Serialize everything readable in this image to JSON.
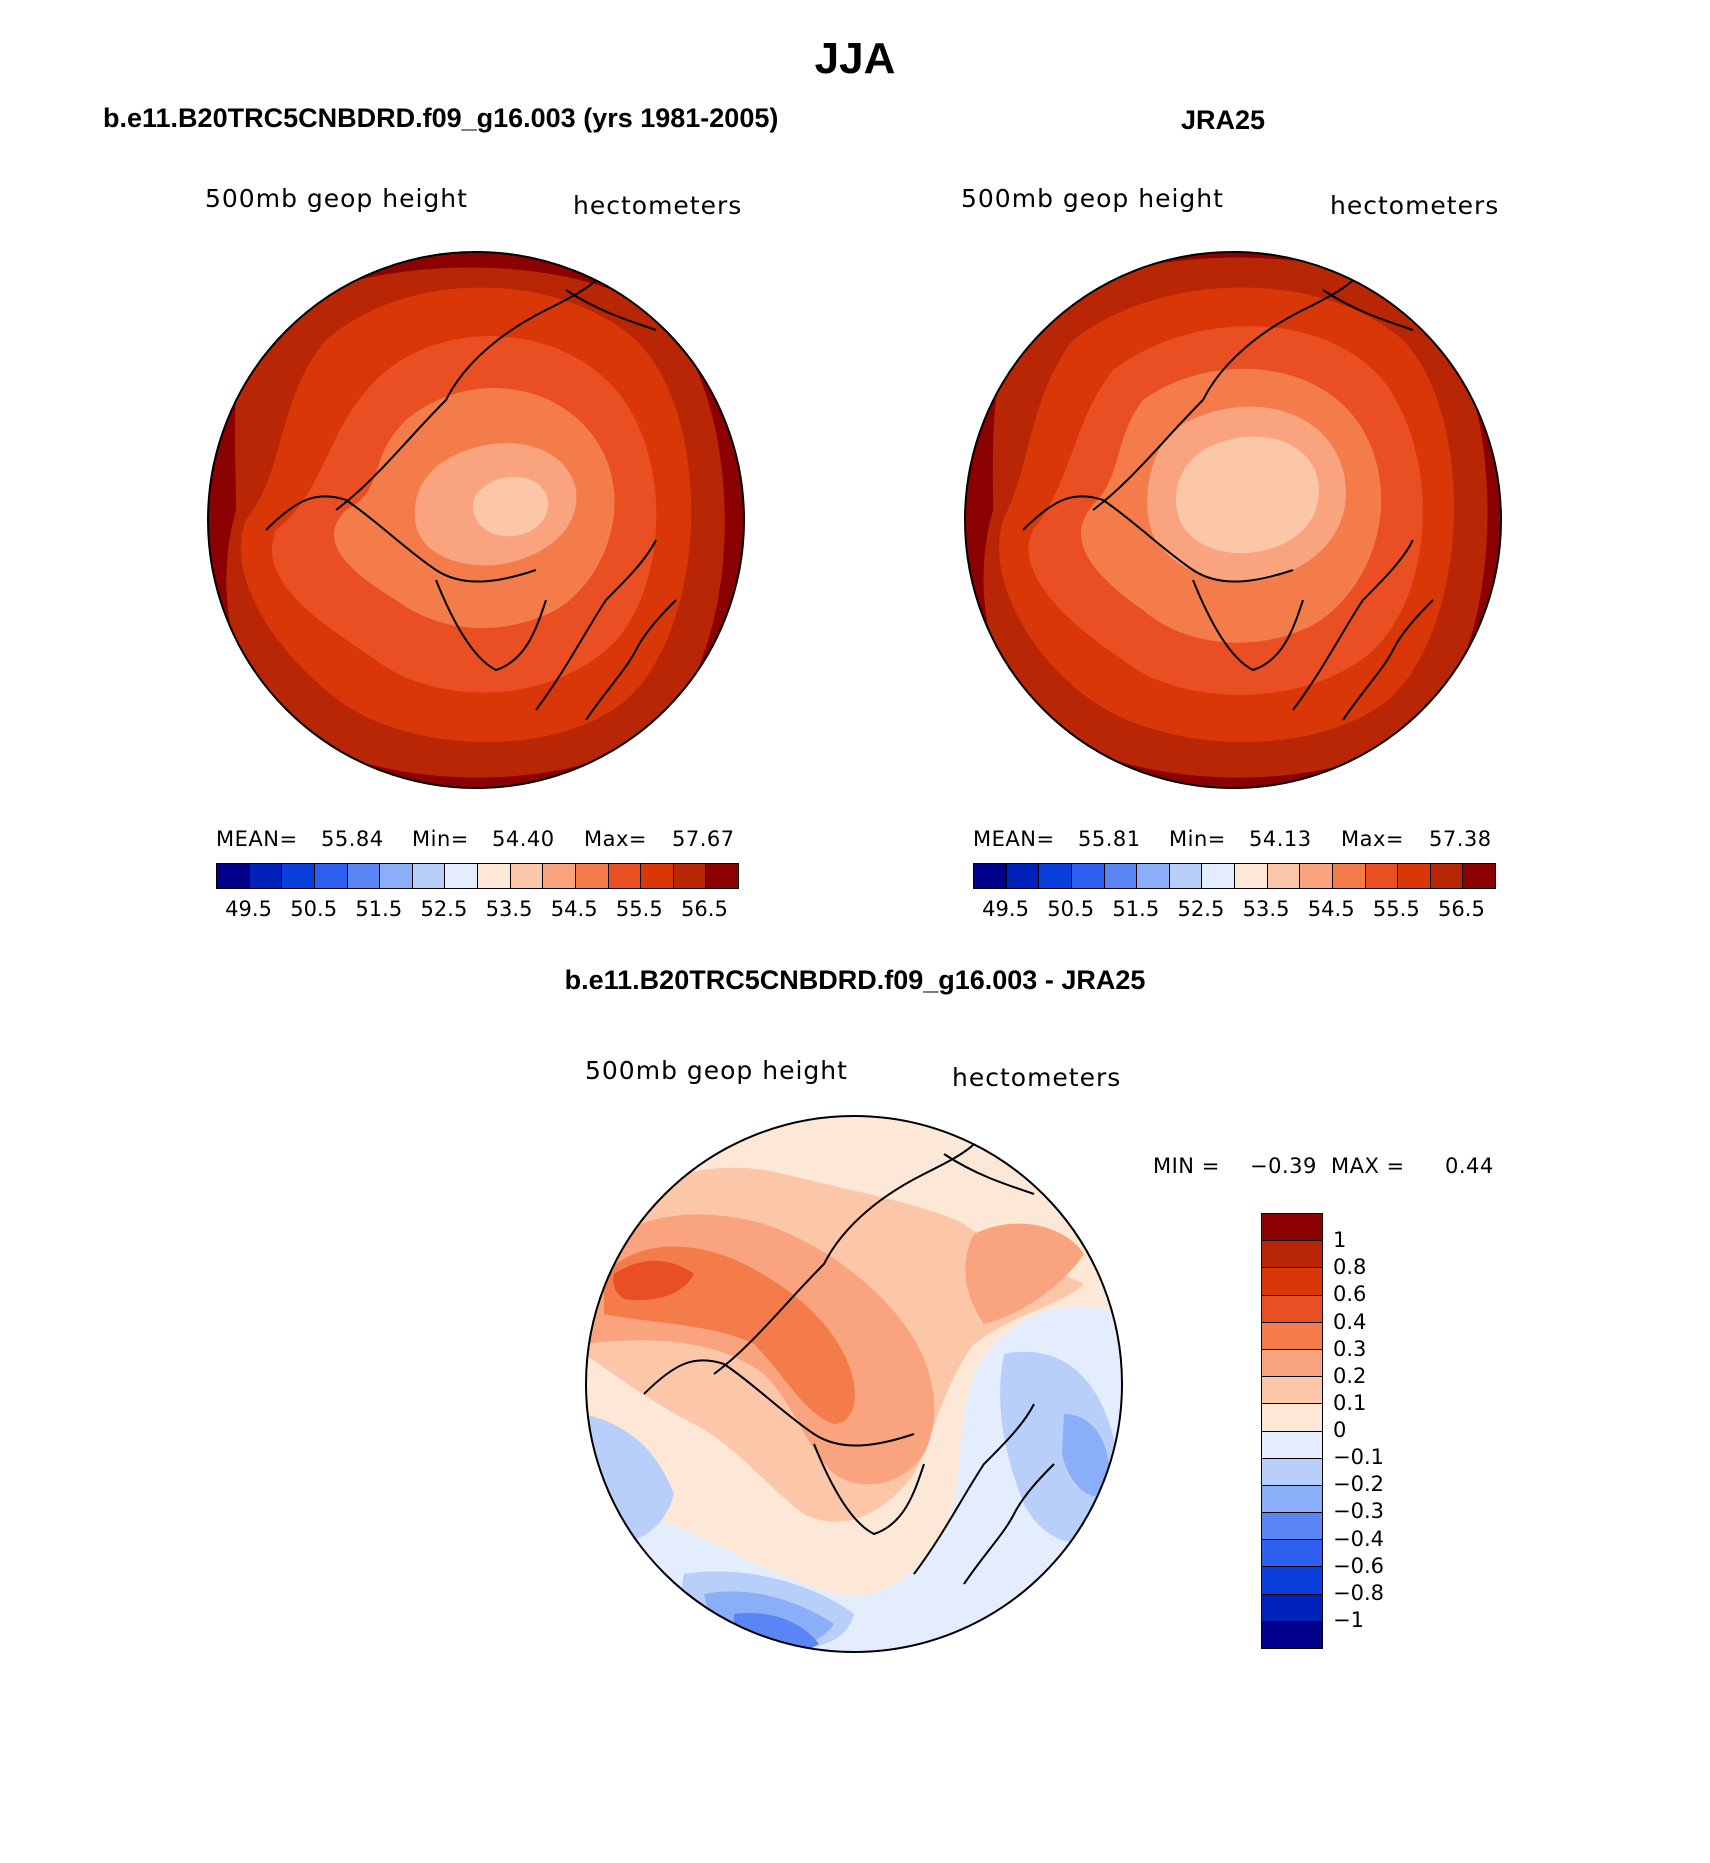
{
  "season": "JJA",
  "panels": {
    "model": {
      "title": "b.e11.B20TRC5CNBDRD.f09_g16.003 (yrs 1981-2005)",
      "variable": "500mb geop height",
      "units": "hectometers",
      "mean_label": "MEAN=",
      "mean": "55.84",
      "min_label": "Min=",
      "min": "54.40",
      "max_label": "Max=",
      "max": "57.67"
    },
    "obs": {
      "title": "JRA25",
      "variable": "500mb geop height",
      "units": "hectometers",
      "mean_label": "MEAN=",
      "mean": "55.81",
      "min_label": "Min=",
      "min": "54.13",
      "max_label": "Max=",
      "max": "57.38"
    },
    "diff": {
      "title": "b.e11.B20TRC5CNBDRD.f09_g16.003 - JRA25",
      "variable": "500mb geop height",
      "units": "hectometers",
      "min_label": "MIN =",
      "min": "−0.39",
      "max_label": "MAX =",
      "max": "0.44"
    }
  },
  "colorbars": {
    "main": {
      "ticks": [
        "49.5",
        "50.5",
        "51.5",
        "52.5",
        "53.5",
        "54.5",
        "55.5",
        "56.5"
      ],
      "colors": [
        "#00008b",
        "#0022bb",
        "#0a3fdd",
        "#2d5ff0",
        "#5a86f5",
        "#8aaef7",
        "#b8cffa",
        "#e3edfd",
        "#fde8d8",
        "#fcc6a9",
        "#f9a47f",
        "#f47c4b",
        "#e94f22",
        "#d93708",
        "#b82605",
        "#8b0000"
      ]
    },
    "diff": {
      "ticks": [
        "1",
        "0.8",
        "0.6",
        "0.4",
        "0.3",
        "0.2",
        "0.1",
        "0",
        "−0.1",
        "−0.2",
        "−0.3",
        "−0.4",
        "−0.6",
        "−0.8",
        "−1"
      ],
      "colors": [
        "#8b0000",
        "#b82605",
        "#d93708",
        "#e94f22",
        "#f47c4b",
        "#f9a47f",
        "#fcc6a9",
        "#fde8d8",
        "#e3edfd",
        "#b8cffa",
        "#8aaef7",
        "#5a86f5",
        "#2d5ff0",
        "#0a3fdd",
        "#0022bb",
        "#00008b"
      ]
    }
  },
  "map_style": {
    "land_outline_color": "#000000",
    "ocean_fill": "none"
  }
}
